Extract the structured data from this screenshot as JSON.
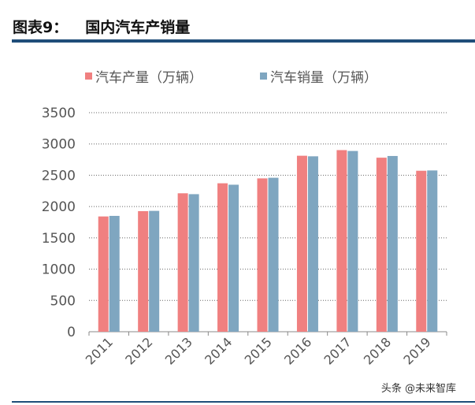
{
  "header": {
    "figure_label": "图表9：",
    "title": "国内汽车产销量"
  },
  "watermark": "头条 @未来智库",
  "chart_data": {
    "type": "bar",
    "categories": [
      "2011",
      "2012",
      "2013",
      "2014",
      "2015",
      "2016",
      "2017",
      "2018",
      "2019"
    ],
    "series": [
      {
        "name": "汽车产量（万辆）",
        "color": "#f08080",
        "values": [
          1842,
          1927,
          2212,
          2372,
          2450,
          2812,
          2902,
          2781,
          2572
        ]
      },
      {
        "name": "汽车销量（万辆）",
        "color": "#7fa6c0",
        "values": [
          1851,
          1931,
          2198,
          2349,
          2460,
          2803,
          2888,
          2808,
          2577
        ]
      }
    ],
    "ylim": [
      0,
      3500
    ],
    "yticks": [
      0,
      500,
      1000,
      1500,
      2000,
      2500,
      3000,
      3500
    ],
    "grid": true,
    "legend": "top"
  }
}
